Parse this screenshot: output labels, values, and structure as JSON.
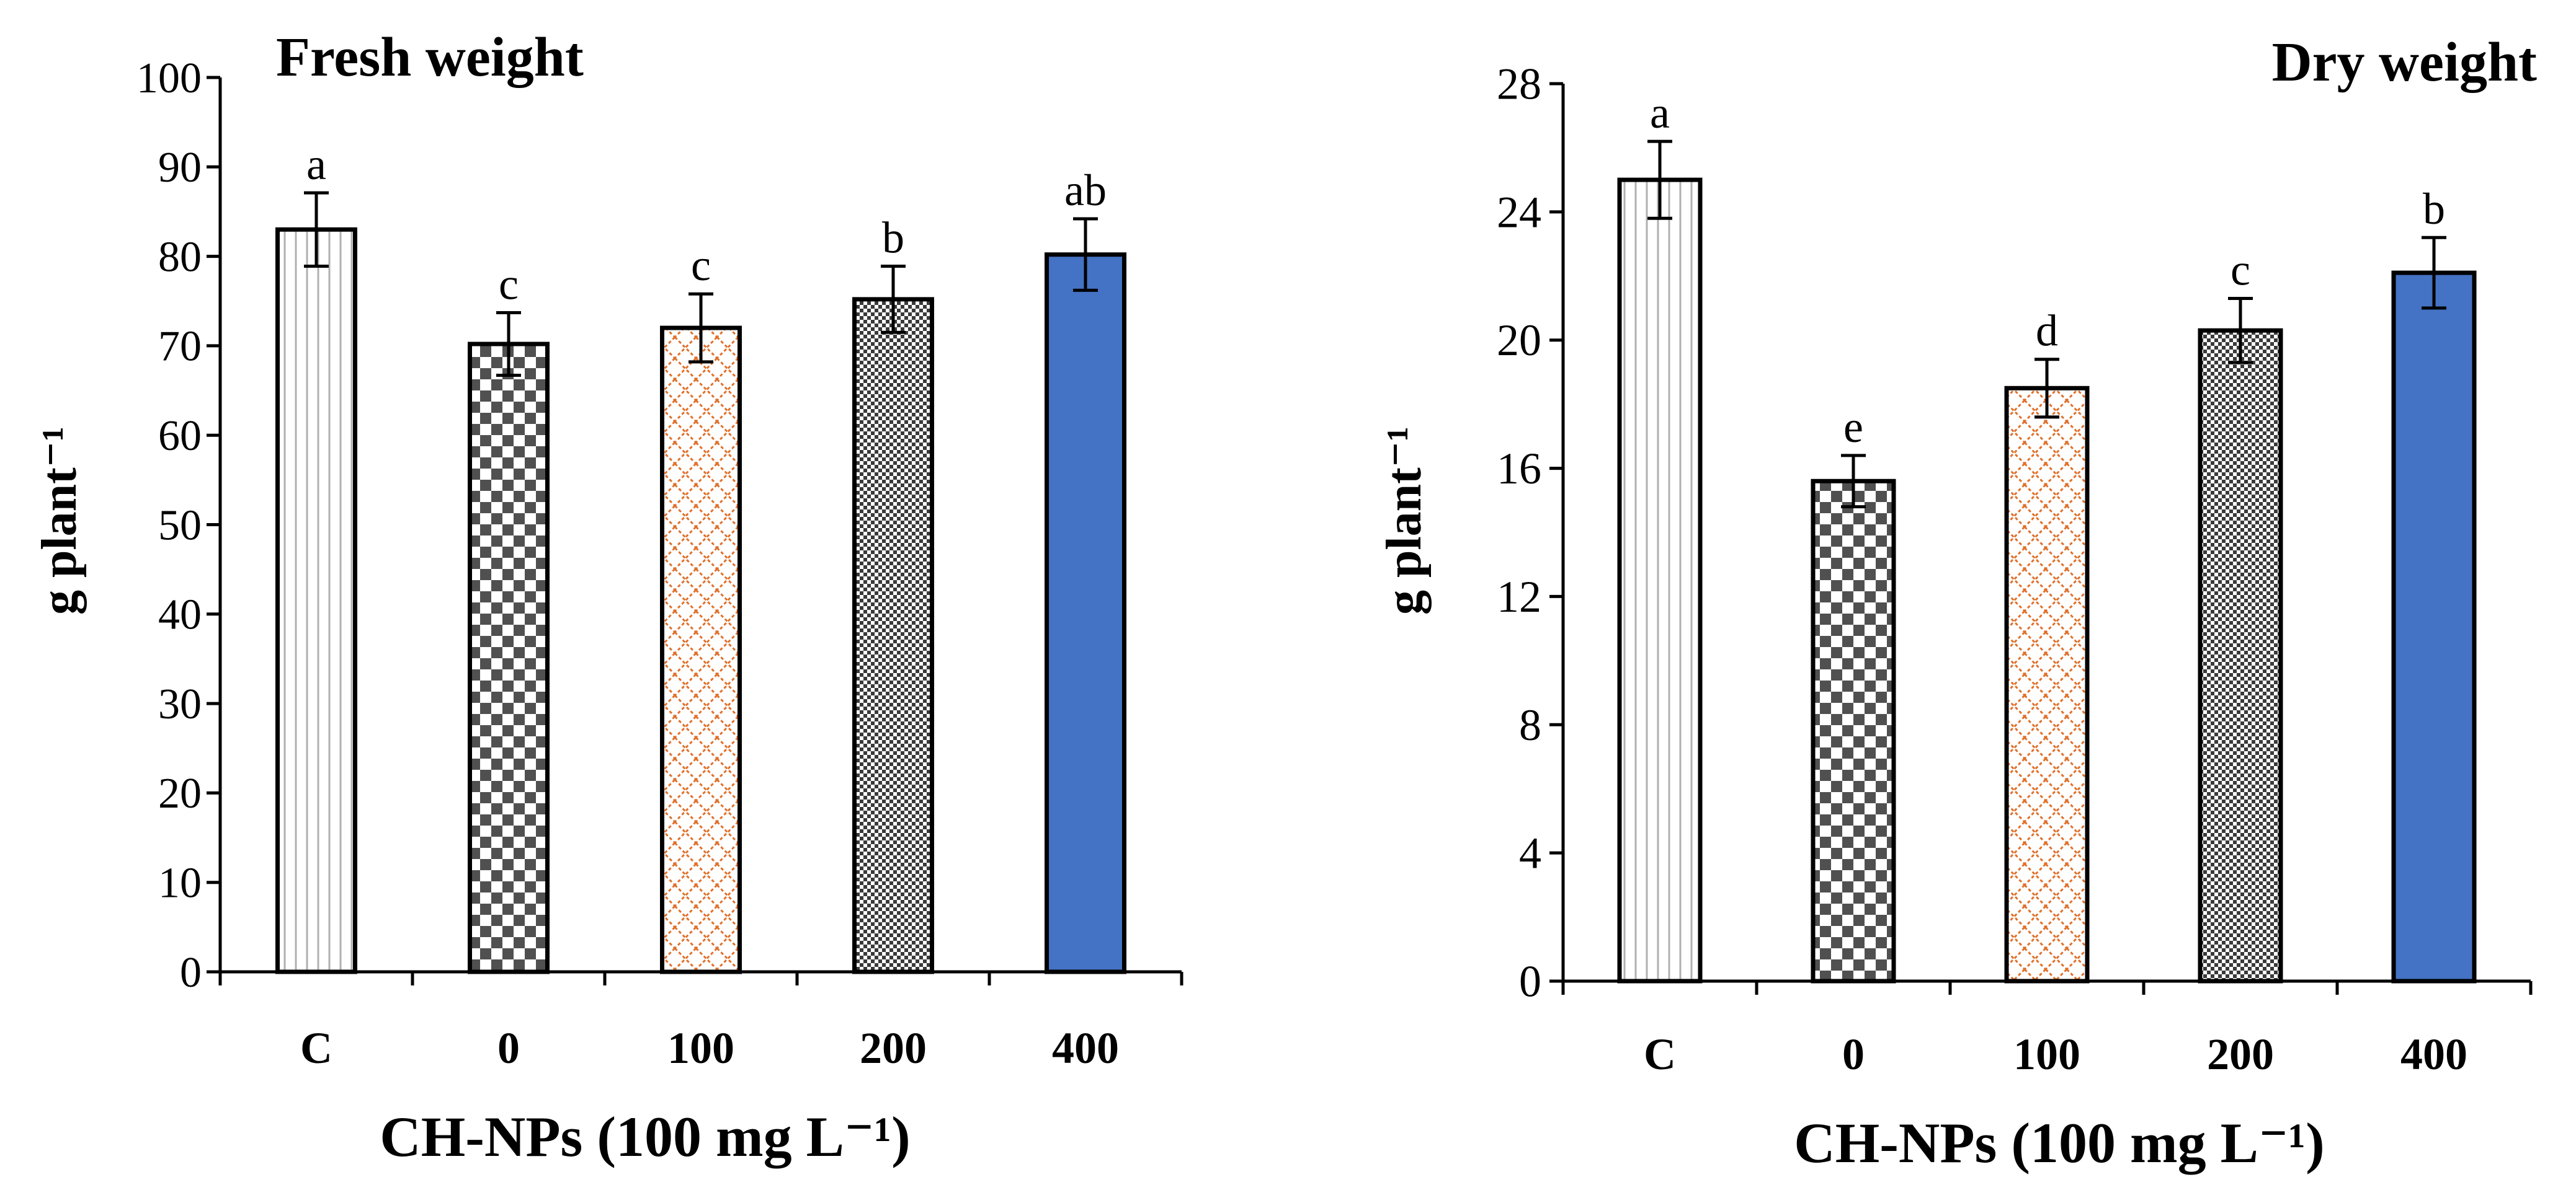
{
  "chart_data": [
    {
      "type": "bar",
      "title": "Fresh weight",
      "xlabel": "CH-NPs (100 mg L⁻¹)",
      "ylabel": "g plant⁻¹",
      "categories": [
        "C",
        "0",
        "100",
        "200",
        "400"
      ],
      "values": [
        83,
        70.2,
        72,
        75.2,
        80.2
      ],
      "errors": [
        4.1,
        3.5,
        3.8,
        3.7,
        4.0
      ],
      "letters": [
        "a",
        "c",
        "c",
        "b",
        "ab"
      ],
      "ylim": [
        0,
        100
      ],
      "yticks": [
        0,
        10,
        20,
        30,
        40,
        50,
        60,
        70,
        80,
        90,
        100
      ],
      "legend": "none"
    },
    {
      "type": "bar",
      "title": "Dry weight",
      "xlabel": "CH-NPs (100 mg L⁻¹)",
      "ylabel": "g plant⁻¹",
      "categories": [
        "C",
        "0",
        "100",
        "200",
        "400"
      ],
      "values": [
        25,
        15.6,
        18.5,
        20.3,
        22.1
      ],
      "errors": [
        1.2,
        0.8,
        0.9,
        1.0,
        1.1
      ],
      "letters": [
        "a",
        "e",
        "d",
        "c",
        "b"
      ],
      "ylim": [
        0,
        28
      ],
      "yticks": [
        0,
        4,
        8,
        12,
        16,
        20,
        24,
        28
      ],
      "legend": "none"
    }
  ],
  "colors": {
    "axis": "#000000",
    "vertical_lines": "#b0b0b0",
    "checker": "#505050",
    "orange_lattice": "#e0702a",
    "fine_checker": "#3a3a3a",
    "solid_blue": "#4472c4"
  }
}
